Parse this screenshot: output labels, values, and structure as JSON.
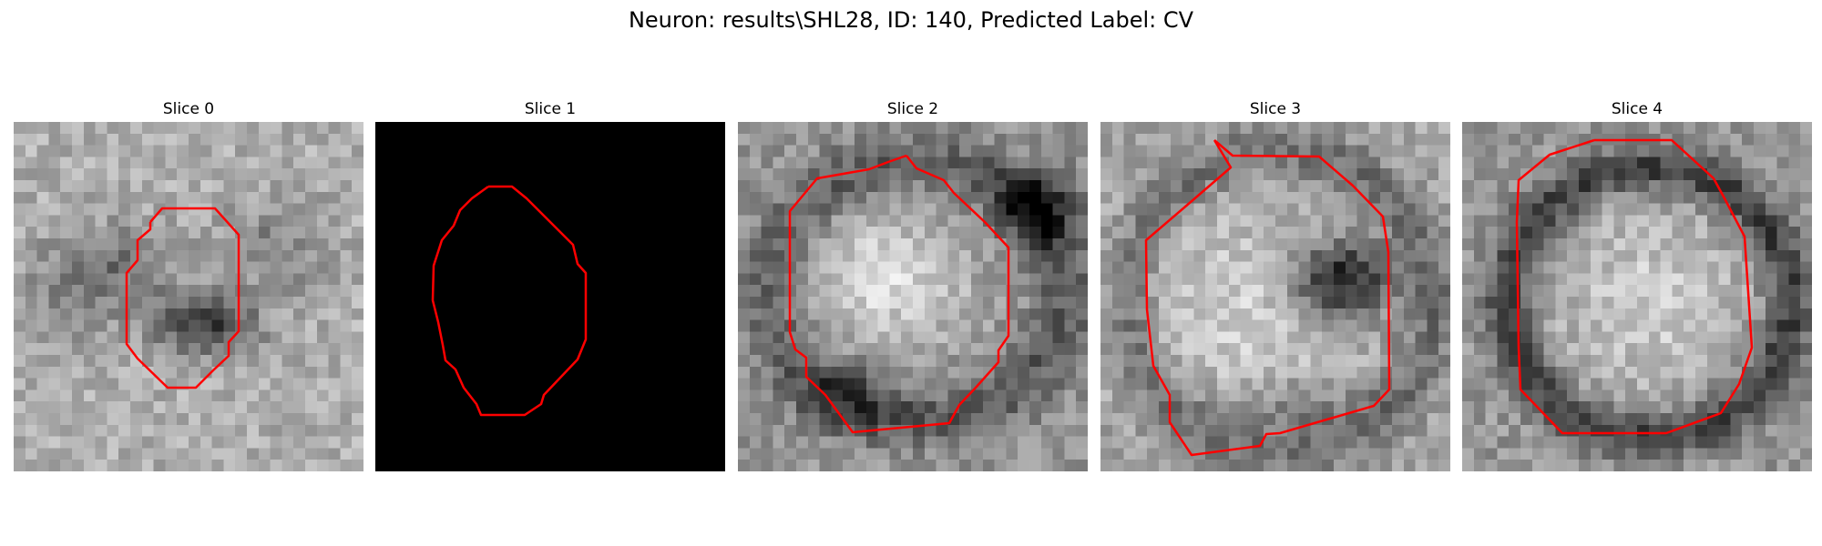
{
  "figure": {
    "title": "Neuron: results\\SHL28, ID: 140, Predicted Label: CV"
  },
  "panels": [
    {
      "title": "Slice 0"
    },
    {
      "title": "Slice 1"
    },
    {
      "title": "Slice 2"
    },
    {
      "title": "Slice 3"
    },
    {
      "title": "Slice 4"
    }
  ],
  "colors": {
    "contour": "#ff0000",
    "background": "#ffffff"
  }
}
